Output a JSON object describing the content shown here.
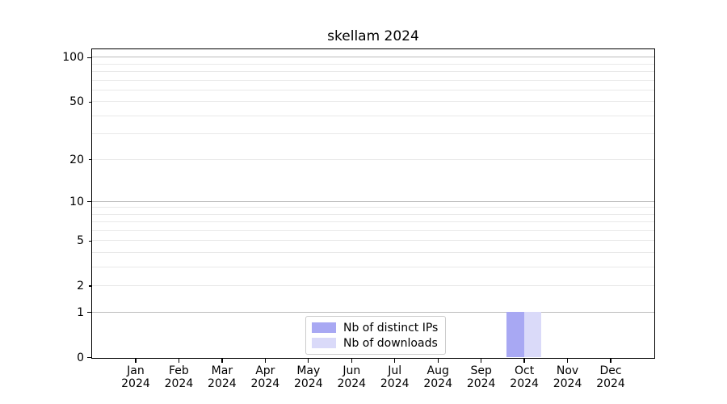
{
  "figure": {
    "background": "#ffffff"
  },
  "chart_data": {
    "type": "bar",
    "title": "skellam 2024",
    "categories": [
      "Jan 2024",
      "Feb 2024",
      "Mar 2024",
      "Apr 2024",
      "May 2024",
      "Jun 2024",
      "Jul 2024",
      "Aug 2024",
      "Sep 2024",
      "Oct 2024",
      "Nov 2024",
      "Dec 2024"
    ],
    "series": [
      {
        "name": "Nb of distinct IPs",
        "color": "#a8a8f3",
        "values": [
          0,
          0,
          0,
          0,
          0,
          0,
          0,
          0,
          0,
          1,
          0,
          0
        ]
      },
      {
        "name": "Nb of downloads",
        "color": "#dadaf9",
        "values": [
          0,
          0,
          0,
          0,
          0,
          0,
          0,
          0,
          0,
          1,
          0,
          0
        ]
      }
    ],
    "y_axis": {
      "scale": "log1p",
      "min": 0,
      "max": 113,
      "labeled_ticks": [
        0,
        1,
        2,
        5,
        10,
        20,
        50,
        100
      ],
      "major_ticks": [
        0,
        1,
        10,
        100
      ],
      "minor_labeled_ticks": [
        2,
        5,
        20,
        50
      ],
      "major_gridlines": [
        1,
        10,
        100
      ],
      "minor_gridlines": [
        2,
        3,
        4,
        5,
        6,
        7,
        8,
        9,
        20,
        30,
        40,
        50,
        60,
        70,
        80,
        90
      ]
    },
    "legend": {
      "position": "lower center"
    },
    "grid": true,
    "colors": {
      "major_grid": "#bbbbbb",
      "minor_grid": "#e9e9e9",
      "spine": "#000000",
      "text": "#000000",
      "legend_border": "#cccccc"
    }
  }
}
